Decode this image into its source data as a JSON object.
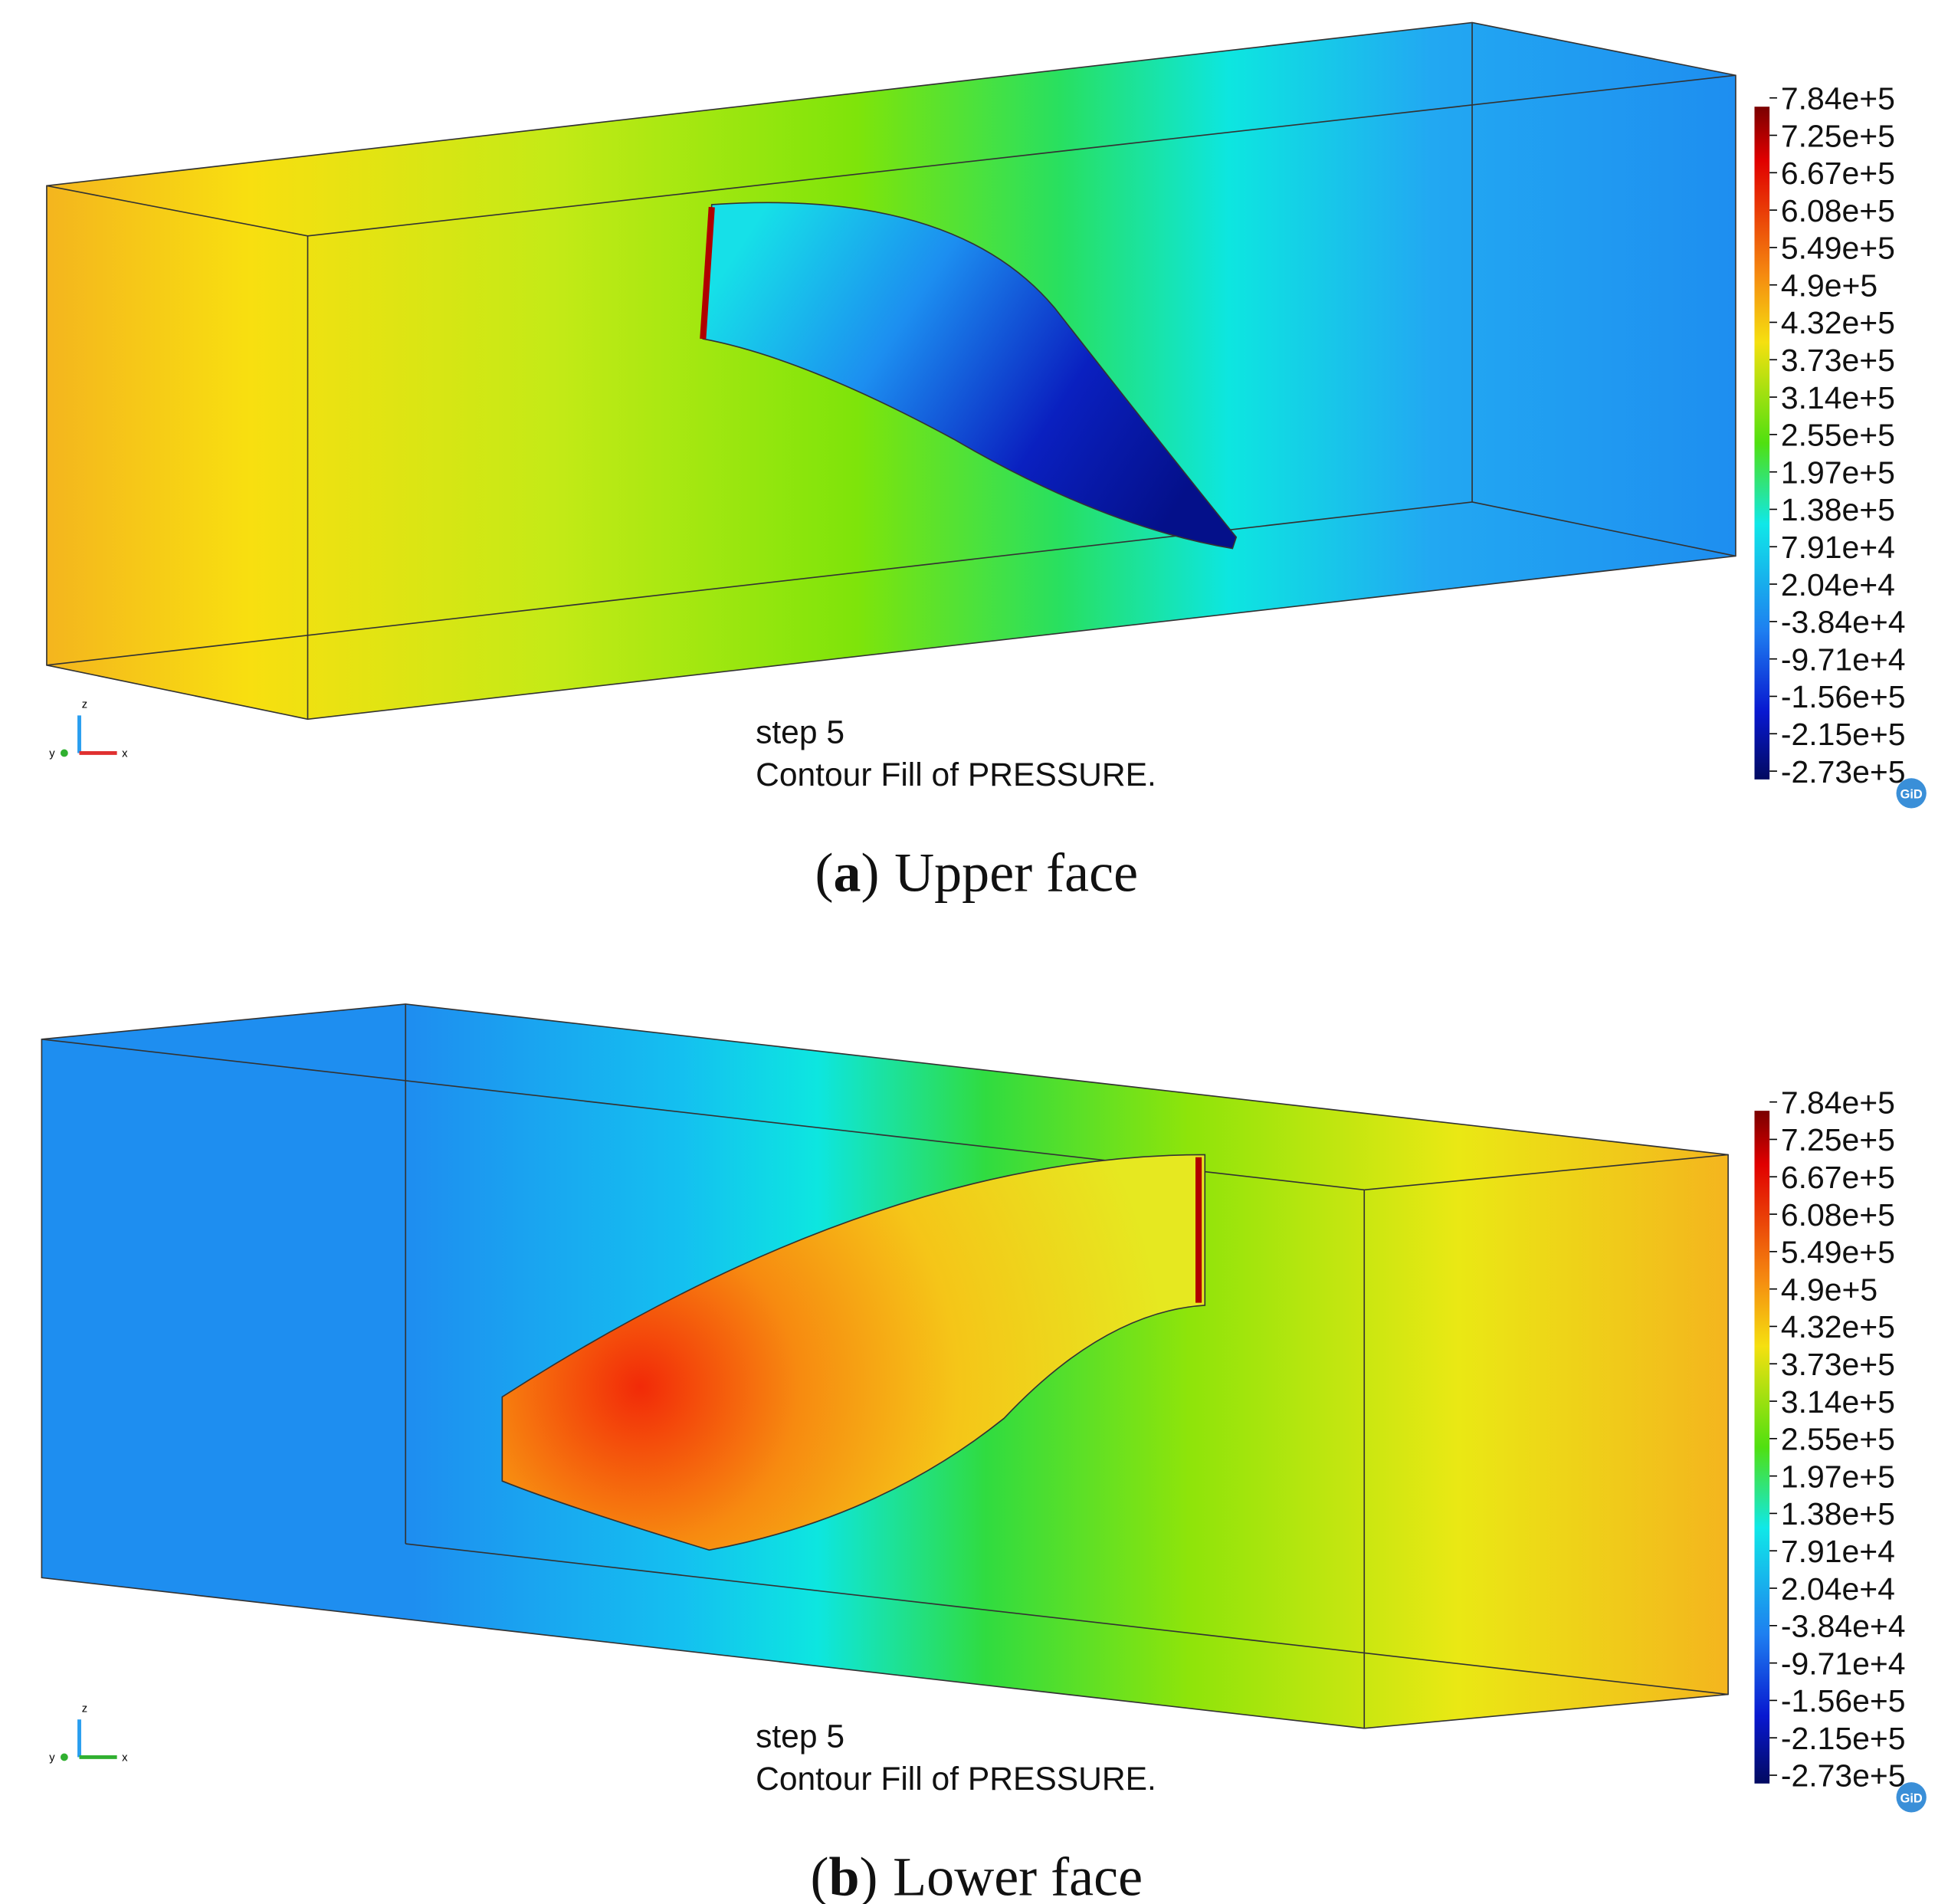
{
  "panels": [
    {
      "caption": [
        "(",
        "a",
        ")",
        "Upper face"
      ],
      "step": "step 5",
      "description": "Contour Fill of PRESSURE.",
      "legend": [
        "7.84e+5",
        "7.25e+5",
        "6.67e+5",
        "6.08e+5",
        "5.49e+5",
        "4.9e+5",
        "4.32e+5",
        "3.73e+5",
        "3.14e+5",
        "2.55e+5",
        "1.97e+5",
        "1.38e+5",
        "7.91e+4",
        "2.04e+4",
        "-3.84e+4",
        "-9.71e+4",
        "-1.56e+5",
        "-2.15e+5",
        "-2.73e+5"
      ],
      "logo": "GiD",
      "axes": [
        "z",
        "y",
        "x"
      ]
    },
    {
      "caption": [
        "(",
        "b",
        ")",
        "Lower face"
      ],
      "step": "step 5",
      "description": "Contour Fill of PRESSURE.",
      "legend": [
        "7.84e+5",
        "7.25e+5",
        "6.67e+5",
        "6.08e+5",
        "5.49e+5",
        "4.9e+5",
        "4.32e+5",
        "3.73e+5",
        "3.14e+5",
        "2.55e+5",
        "1.97e+5",
        "1.38e+5",
        "7.91e+4",
        "2.04e+4",
        "-3.84e+4",
        "-9.71e+4",
        "-1.56e+5",
        "-2.15e+5",
        "-2.73e+5"
      ],
      "logo": "GiD",
      "axes": [
        "z",
        "y",
        "x"
      ]
    }
  ]
}
